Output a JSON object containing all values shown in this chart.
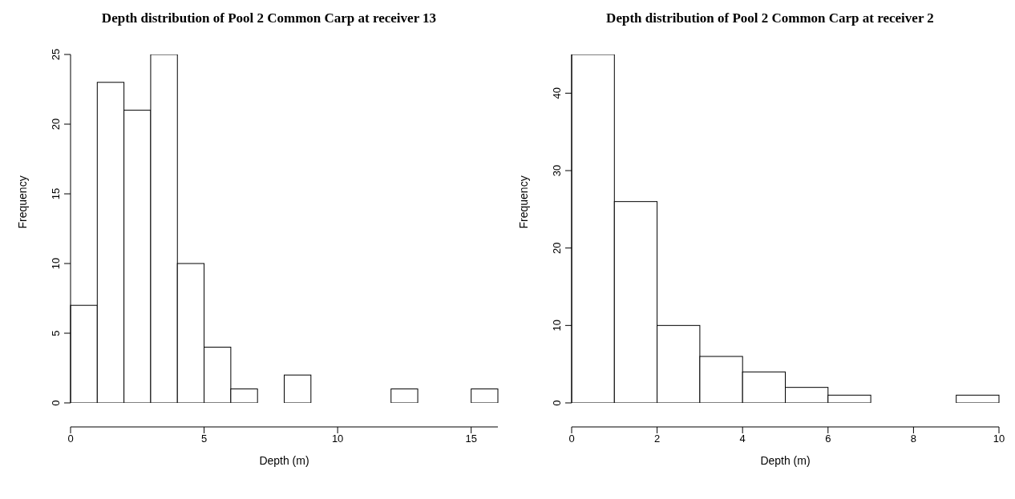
{
  "chart_data": [
    {
      "type": "histogram",
      "title": "Depth distribution of Pool 2 Common Carp at receiver 13",
      "xlabel": "Depth (m)",
      "ylabel": "Frequency",
      "bins": [
        0,
        1,
        2,
        3,
        4,
        5,
        6,
        7,
        8,
        9,
        10,
        11,
        12,
        13,
        14,
        15,
        16
      ],
      "values": [
        7,
        23,
        21,
        25,
        10,
        4,
        1,
        0,
        2,
        0,
        0,
        0,
        1,
        0,
        0,
        1
      ],
      "color": "#ffffff",
      "xlim": [
        0,
        16
      ],
      "xticks": [
        0,
        5,
        10,
        15
      ],
      "ylim": [
        0,
        25
      ],
      "yticks": [
        0,
        5,
        10,
        15,
        20,
        25
      ],
      "grid": false,
      "legend": false
    },
    {
      "type": "histogram",
      "title": "Depth distribution of Pool 2 Common Carp at receiver 2",
      "xlabel": "Depth (m)",
      "ylabel": "Frequency",
      "bins": [
        0,
        1,
        2,
        3,
        4,
        5,
        6,
        7,
        8,
        9,
        10
      ],
      "values": [
        45,
        26,
        10,
        6,
        4,
        2,
        1,
        0,
        0,
        1
      ],
      "color": "#ffffff",
      "xlim": [
        0,
        10
      ],
      "xticks": [
        0,
        2,
        4,
        6,
        8,
        10
      ],
      "ylim": [
        0,
        45
      ],
      "yticks": [
        0,
        10,
        20,
        30,
        40
      ],
      "grid": false,
      "legend": false
    }
  ]
}
